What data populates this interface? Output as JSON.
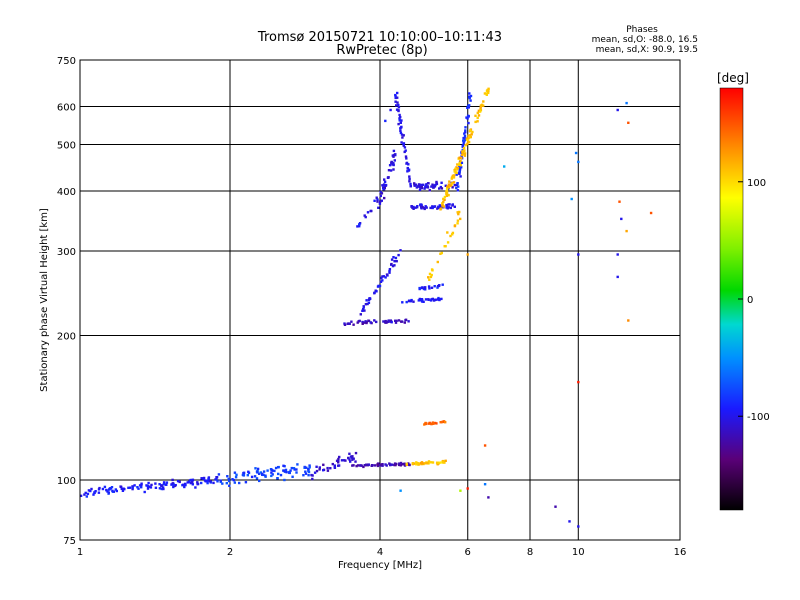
{
  "chart_data": {
    "type": "scatter",
    "title": "Tromsø 20150721 10:10:00–10:11:43",
    "subtitle": "RwPretec (8p)",
    "xlabel": "Frequency [MHz]",
    "ylabel": "Stationary phase Virtual Height [km]",
    "x_scale": "log",
    "y_scale": "log",
    "xlim": [
      1,
      16
    ],
    "ylim": [
      75,
      750
    ],
    "x_ticks": [
      1,
      2,
      4,
      6,
      8,
      10,
      16
    ],
    "y_ticks": [
      75,
      100,
      200,
      300,
      400,
      500,
      600,
      750
    ],
    "x_tick_labels": [
      "1",
      "2",
      "4",
      "6",
      "8",
      "10",
      "16"
    ],
    "y_tick_labels": [
      "75",
      "100",
      "200",
      "300",
      "400",
      "500",
      "600",
      "750"
    ],
    "grid": true,
    "phases_box": {
      "heading": "Phases",
      "line1": "mean, sd,O: -88.0, 16.5",
      "line2": "mean, sd,X:  90.9, 19.5"
    },
    "colorbar": {
      "label": "[deg]",
      "range": [
        -180,
        180
      ],
      "ticks": [
        100,
        0,
        -100
      ],
      "tick_labels": [
        "100",
        "0",
        "-100"
      ]
    },
    "clusters": [
      {
        "type": "line",
        "x0": 1.0,
        "x1": 1.9,
        "y0": 94,
        "y1": 100,
        "jitter": 0.028,
        "phase": -95,
        "n": 130
      },
      {
        "type": "line",
        "x0": 1.9,
        "x1": 2.9,
        "y0": 100,
        "y1": 106,
        "jitter": 0.05,
        "phase": -80,
        "n": 90
      },
      {
        "type": "line",
        "x0": 2.9,
        "x1": 3.6,
        "y0": 103,
        "y1": 112,
        "jitter": 0.05,
        "phase": -110,
        "n": 40
      },
      {
        "type": "line",
        "x0": 3.5,
        "x1": 4.6,
        "y0": 107,
        "y1": 108,
        "jitter": 0.01,
        "phase": -118,
        "n": 55
      },
      {
        "type": "line",
        "x0": 4.5,
        "x1": 5.4,
        "y0": 108,
        "y1": 109,
        "jitter": 0.01,
        "phase": 110,
        "n": 45
      },
      {
        "type": "line",
        "x0": 4.9,
        "x1": 5.4,
        "y0": 131,
        "y1": 132,
        "jitter": 0.008,
        "phase": 145,
        "n": 22
      },
      {
        "type": "line",
        "x0": 3.4,
        "x1": 4.6,
        "y0": 212,
        "y1": 215,
        "jitter": 0.012,
        "phase": -115,
        "n": 45
      },
      {
        "type": "line",
        "x0": 3.6,
        "x1": 4.4,
        "y0": 215,
        "y1": 300,
        "jitter": 0.02,
        "phase": -100,
        "n": 45
      },
      {
        "type": "line",
        "x0": 4.4,
        "x1": 5.3,
        "y0": 235,
        "y1": 238,
        "jitter": 0.01,
        "phase": -95,
        "n": 30
      },
      {
        "type": "line",
        "x0": 4.8,
        "x1": 5.4,
        "y0": 250,
        "y1": 255,
        "jitter": 0.01,
        "phase": -95,
        "n": 18
      },
      {
        "type": "line",
        "x0": 4.3,
        "x1": 4.6,
        "y0": 640,
        "y1": 410,
        "jitter": 0.02,
        "phase": -100,
        "n": 50
      },
      {
        "type": "line",
        "x0": 4.0,
        "x1": 4.3,
        "y0": 380,
        "y1": 480,
        "jitter": 0.05,
        "phase": -105,
        "n": 40
      },
      {
        "type": "line",
        "x0": 4.6,
        "x1": 5.7,
        "y0": 410,
        "y1": 410,
        "jitter": 0.025,
        "phase": -105,
        "n": 50
      },
      {
        "type": "line",
        "x0": 4.6,
        "x1": 5.7,
        "y0": 370,
        "y1": 372,
        "jitter": 0.02,
        "phase": -100,
        "n": 45
      },
      {
        "type": "line",
        "x0": 5.7,
        "x1": 6.1,
        "y0": 400,
        "y1": 650,
        "jitter": 0.025,
        "phase": -90,
        "n": 60
      },
      {
        "type": "line",
        "x0": 3.5,
        "x1": 4.0,
        "y0": 320,
        "y1": 390,
        "jitter": 0.02,
        "phase": -100,
        "n": 15
      },
      {
        "type": "line",
        "x0": 5.3,
        "x1": 6.6,
        "y0": 370,
        "y1": 650,
        "jitter": 0.03,
        "phase": 110,
        "n": 110
      },
      {
        "type": "line",
        "x0": 5.0,
        "x1": 5.8,
        "y0": 260,
        "y1": 360,
        "jitter": 0.03,
        "phase": 110,
        "n": 25
      }
    ],
    "scatter_points": [
      {
        "x": 4.2,
        "y": 590,
        "phase": -100
      },
      {
        "x": 4.1,
        "y": 560,
        "phase": -90
      },
      {
        "x": 9.0,
        "y": 88,
        "phase": -120
      },
      {
        "x": 9.6,
        "y": 82,
        "phase": -100
      },
      {
        "x": 10.0,
        "y": 80,
        "phase": -100
      },
      {
        "x": 10.0,
        "y": 160,
        "phase": 170
      },
      {
        "x": 10.0,
        "y": 295,
        "phase": -100
      },
      {
        "x": 10.0,
        "y": 460,
        "phase": -60
      },
      {
        "x": 9.9,
        "y": 480,
        "phase": -60
      },
      {
        "x": 12.0,
        "y": 590,
        "phase": -100
      },
      {
        "x": 12.1,
        "y": 380,
        "phase": 150
      },
      {
        "x": 12.2,
        "y": 350,
        "phase": -100
      },
      {
        "x": 12.5,
        "y": 330,
        "phase": 120
      },
      {
        "x": 12.0,
        "y": 295,
        "phase": -100
      },
      {
        "x": 12.0,
        "y": 265,
        "phase": -100
      },
      {
        "x": 12.6,
        "y": 215,
        "phase": 130
      },
      {
        "x": 12.5,
        "y": 610,
        "phase": -60
      },
      {
        "x": 12.6,
        "y": 555,
        "phase": 150
      },
      {
        "x": 14.0,
        "y": 360,
        "phase": 150
      },
      {
        "x": 9.7,
        "y": 385,
        "phase": -50
      },
      {
        "x": 6.5,
        "y": 98,
        "phase": -60
      },
      {
        "x": 6.6,
        "y": 92,
        "phase": -120
      },
      {
        "x": 6.0,
        "y": 96,
        "phase": 170
      },
      {
        "x": 6.5,
        "y": 118,
        "phase": 150
      },
      {
        "x": 7.1,
        "y": 450,
        "phase": -40
      },
      {
        "x": 5.8,
        "y": 95,
        "phase": 60
      },
      {
        "x": 4.4,
        "y": 95,
        "phase": -50
      },
      {
        "x": 6.0,
        "y": 295,
        "phase": 120
      }
    ]
  }
}
